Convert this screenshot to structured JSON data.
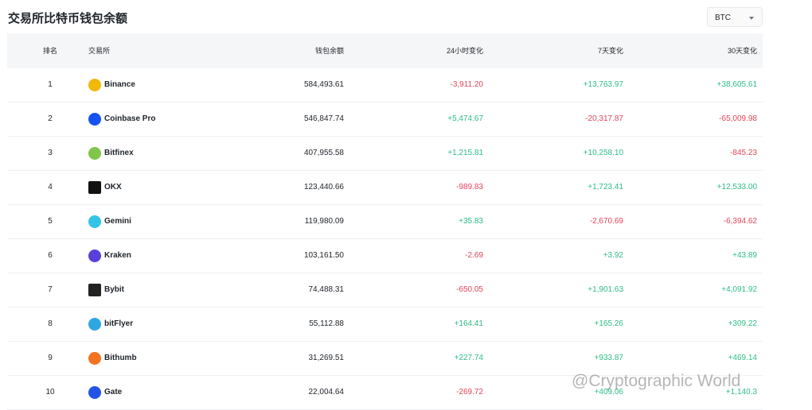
{
  "header": {
    "title": "交易所比特币钱包余额",
    "selector": "BTC"
  },
  "table": {
    "columns": [
      "排名",
      "交易所",
      "钱包余额",
      "24小时变化",
      "7天变化",
      "30天变化"
    ],
    "rows": [
      [
        "1",
        "Binance",
        "584,493.61",
        "-3,911.20",
        "+13,763.97",
        "+38,605.61"
      ],
      [
        "2",
        "Coinbase Pro",
        "546,847.74",
        "+5,474.67",
        "-20,317.87",
        "-65,009.98"
      ],
      [
        "3",
        "Bitfinex",
        "407,955.58",
        "+1,215.81",
        "+10,258.10",
        "-845.23"
      ],
      [
        "4",
        "OKX",
        "123,440.66",
        "-989.83",
        "+1,723.41",
        "+12,533.00"
      ],
      [
        "5",
        "Gemini",
        "119,980.09",
        "+35.83",
        "-2,670.69",
        "-6,394.62"
      ],
      [
        "6",
        "Kraken",
        "103,161.50",
        "-2.69",
        "+3.92",
        "+43.89"
      ],
      [
        "7",
        "Bybit",
        "74,488.31",
        "-650.05",
        "+1,901.63",
        "+4,091.92"
      ],
      [
        "8",
        "bitFlyer",
        "55,112.88",
        "+164.41",
        "+165.26",
        "+309.22"
      ],
      [
        "9",
        "Bithumb",
        "31,269.51",
        "+227.74",
        "+933.87",
        "+469.14"
      ],
      [
        "10",
        "Gate",
        "22,004.64",
        "-269.72",
        "+409.06",
        "+1,140.3"
      ]
    ]
  },
  "watermark": "@Cryptographic World"
}
